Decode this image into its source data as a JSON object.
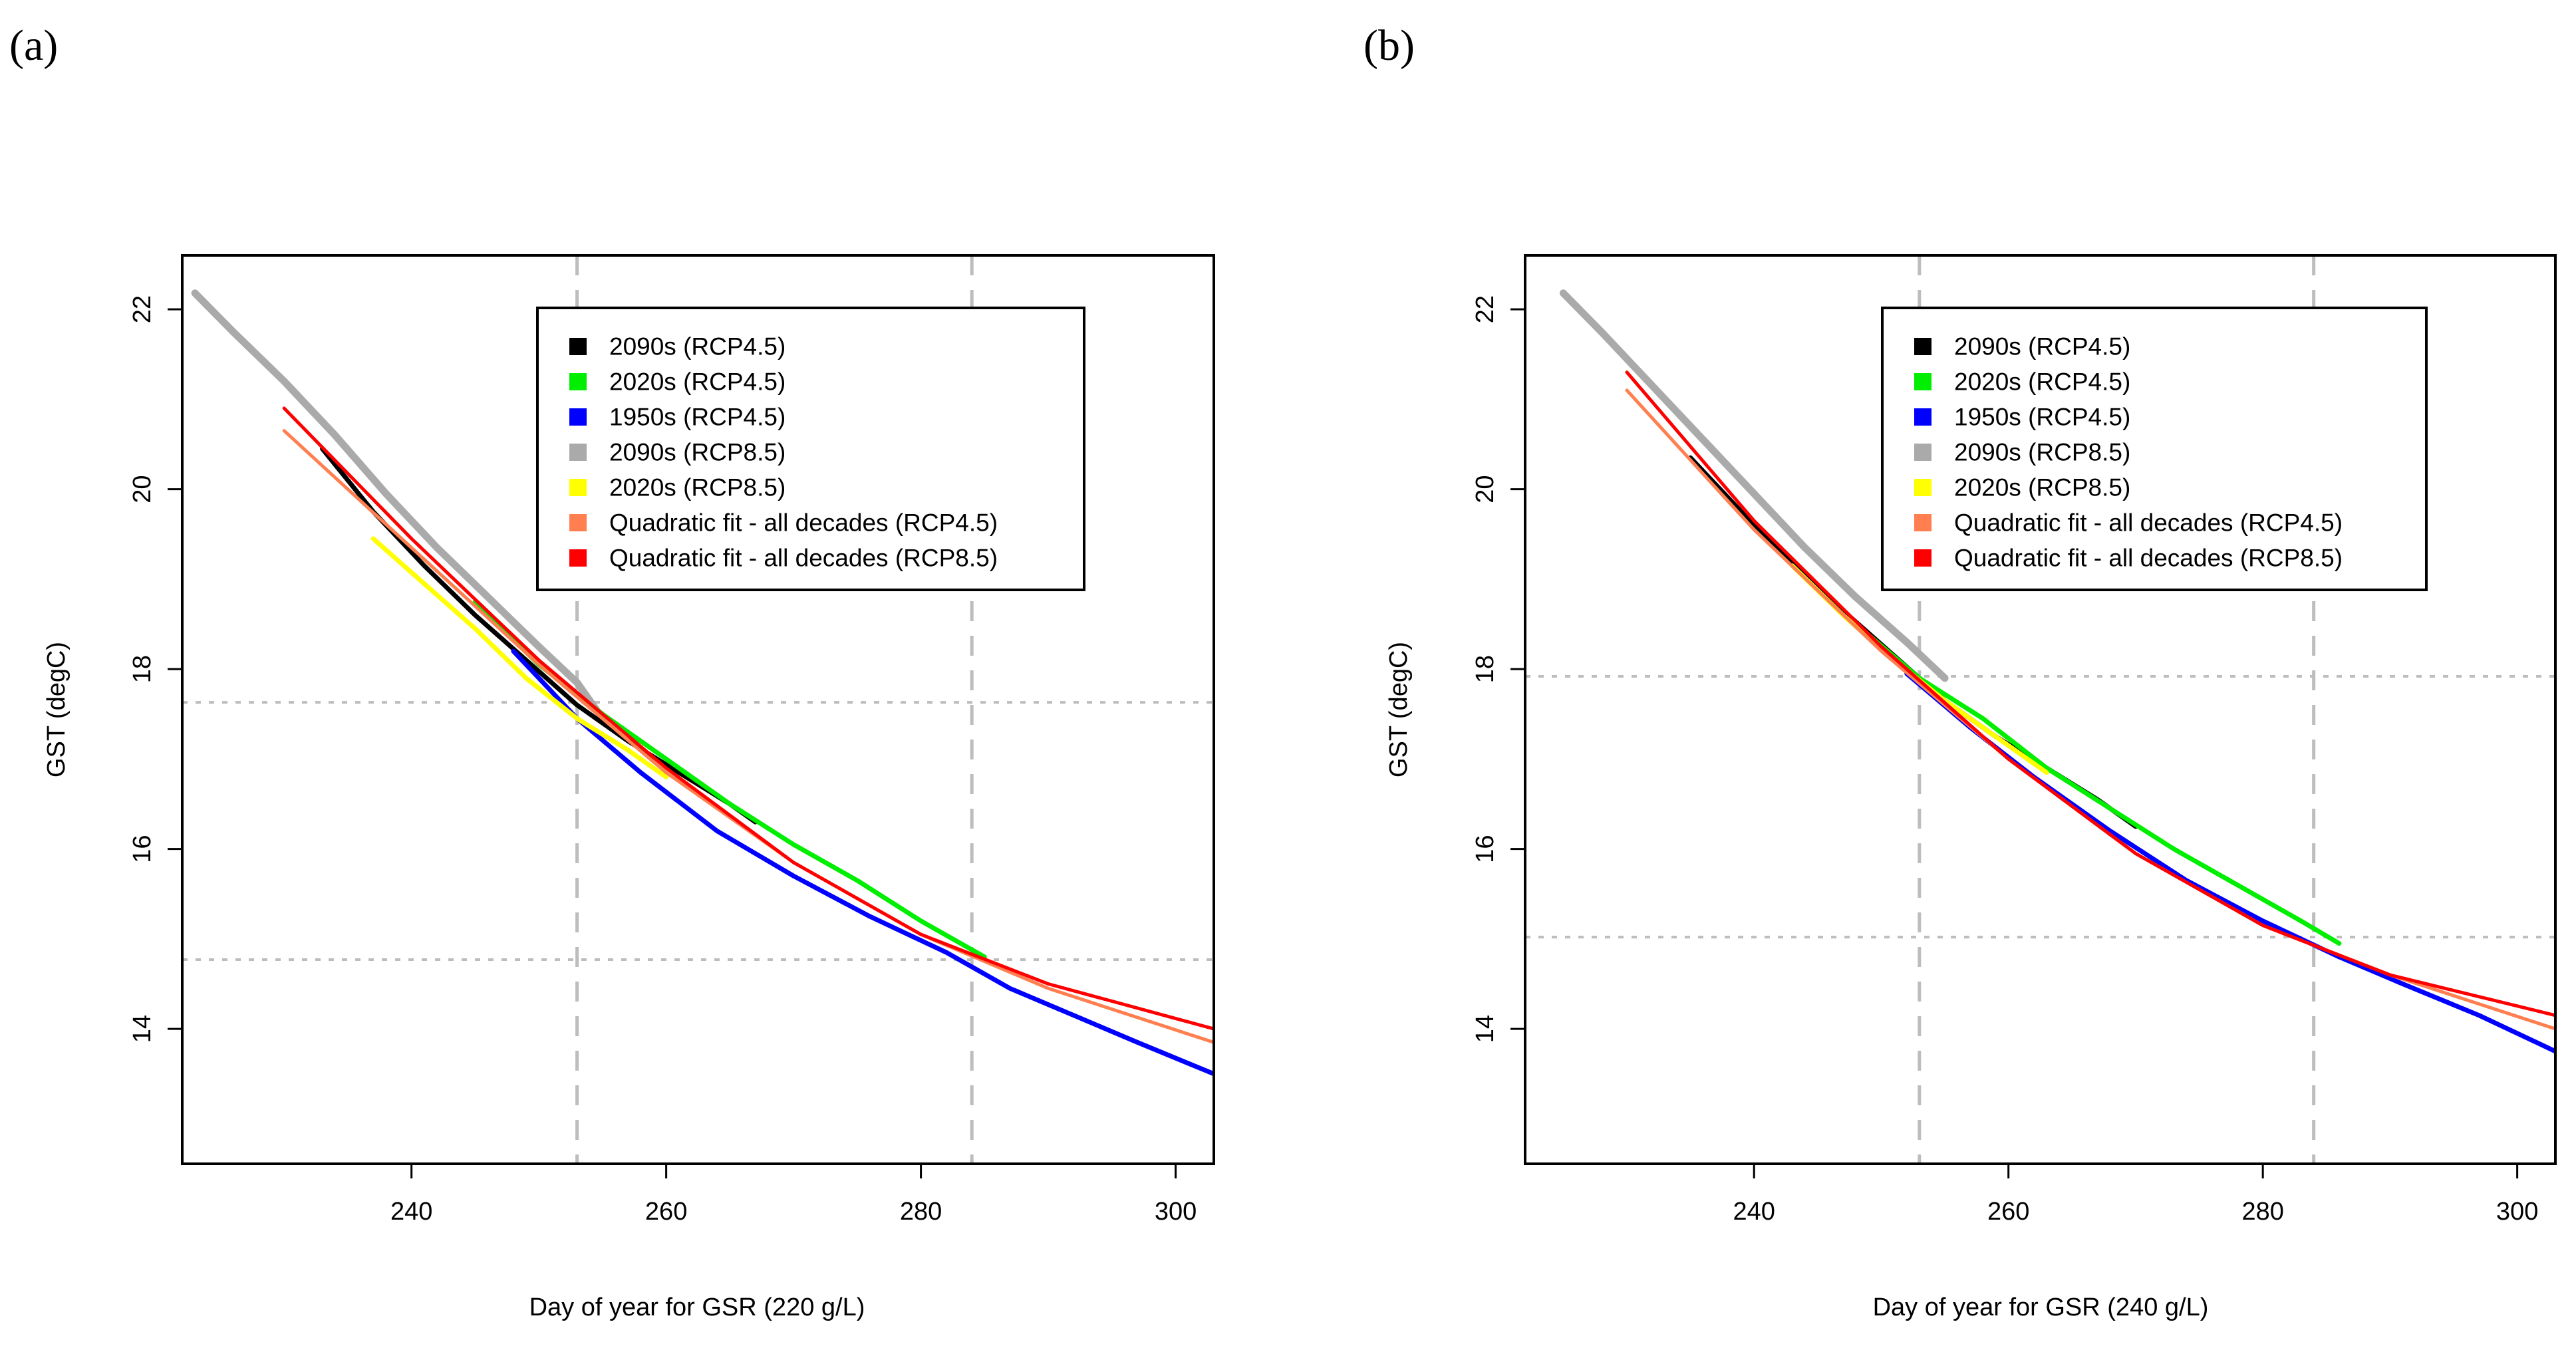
{
  "chart_data": [
    {
      "panel_label": "(a)",
      "type": "line",
      "xlabel": "Day of year for GSR (220 g/L)",
      "ylabel": "GST (degC)",
      "xlim": [
        222,
        303
      ],
      "ylim": [
        12.5,
        22.6
      ],
      "xticks": [
        240,
        260,
        280,
        300
      ],
      "yticks": [
        14,
        16,
        18,
        20,
        22
      ],
      "grid": false,
      "reference_lines": {
        "vertical": [
          253,
          284
        ],
        "horizontal": [
          17.63,
          14.77
        ]
      },
      "legend": {
        "position": "top-right",
        "entries": [
          {
            "label": "2090s (RCP4.5)",
            "color": "#000000"
          },
          {
            "label": "2020s (RCP4.5)",
            "color": "#00ee00"
          },
          {
            "label": "1950s (RCP4.5)",
            "color": "#0000ff"
          },
          {
            "label": "2090s (RCP8.5)",
            "color": "#aaaaaa"
          },
          {
            "label": "2020s (RCP8.5)",
            "color": "#ffff00"
          },
          {
            "label": "Quadratic fit - all decades (RCP4.5)",
            "color": "#ff7f50"
          },
          {
            "label": "Quadratic fit - all decades (RCP8.5)",
            "color": "#ff0000"
          }
        ]
      },
      "series": [
        {
          "name": "2090s (RCP8.5)",
          "color": "#aaaaaa",
          "width": 11,
          "x": [
            223,
            226,
            230,
            234,
            238,
            242,
            246,
            250,
            253,
            255
          ],
          "y": [
            22.18,
            21.75,
            21.2,
            20.6,
            19.95,
            19.35,
            18.8,
            18.25,
            17.85,
            17.45
          ]
        },
        {
          "name": "2090s (RCP4.5)",
          "color": "#000000",
          "width": 7,
          "x": [
            233,
            237,
            241,
            245,
            249,
            253,
            257,
            261,
            265,
            267
          ],
          "y": [
            20.45,
            19.75,
            19.15,
            18.6,
            18.1,
            17.6,
            17.2,
            16.85,
            16.5,
            16.3
          ]
        },
        {
          "name": "1950s (RCP4.5)",
          "color": "#0000ff",
          "width": 7,
          "x": [
            248,
            253,
            258,
            264,
            270,
            276,
            282,
            287,
            292,
            297,
            303
          ],
          "y": [
            18.2,
            17.45,
            16.85,
            16.2,
            15.7,
            15.25,
            14.85,
            14.45,
            14.15,
            13.85,
            13.5
          ]
        },
        {
          "name": "2020s (RCP4.5)",
          "color": "#00ee00",
          "width": 7,
          "x": [
            245,
            250,
            255,
            260,
            265,
            270,
            275,
            280,
            285
          ],
          "y": [
            18.75,
            18.05,
            17.5,
            17.0,
            16.5,
            16.05,
            15.65,
            15.2,
            14.8
          ]
        },
        {
          "name": "2020s (RCP8.5)",
          "color": "#ffff00",
          "width": 7,
          "x": [
            237,
            241,
            245,
            249,
            253,
            257,
            260
          ],
          "y": [
            19.45,
            18.95,
            18.45,
            17.9,
            17.45,
            17.1,
            16.8
          ]
        },
        {
          "name": "Quadratic fit - all decades (RCP4.5)",
          "color": "#ff7f50",
          "width": 5,
          "x": [
            230,
            240,
            250,
            260,
            270,
            280,
            290,
            303
          ],
          "y": [
            20.65,
            19.35,
            18.05,
            16.85,
            15.85,
            15.05,
            14.45,
            13.85
          ]
        },
        {
          "name": "Quadratic fit - all decades (RCP8.5)",
          "color": "#ff0000",
          "width": 5,
          "x": [
            230,
            240,
            250,
            260,
            270,
            280,
            290,
            303
          ],
          "y": [
            20.9,
            19.45,
            18.1,
            16.9,
            15.85,
            15.05,
            14.5,
            14.0
          ]
        }
      ]
    },
    {
      "panel_label": "(b)",
      "type": "line",
      "xlabel": "Day of year for GSR (240 g/L)",
      "ylabel": "GST (degC)",
      "xlim": [
        222,
        303
      ],
      "ylim": [
        12.5,
        22.6
      ],
      "xticks": [
        240,
        260,
        280,
        300
      ],
      "yticks": [
        14,
        16,
        18,
        20,
        22
      ],
      "grid": false,
      "reference_lines": {
        "vertical": [
          253,
          284
        ],
        "horizontal": [
          17.92,
          15.02
        ]
      },
      "legend": {
        "position": "top-right",
        "entries": [
          {
            "label": "2090s (RCP4.5)",
            "color": "#000000"
          },
          {
            "label": "2020s (RCP4.5)",
            "color": "#00ee00"
          },
          {
            "label": "1950s (RCP4.5)",
            "color": "#0000ff"
          },
          {
            "label": "2090s (RCP8.5)",
            "color": "#aaaaaa"
          },
          {
            "label": "2020s (RCP8.5)",
            "color": "#ffff00"
          },
          {
            "label": "Quadratic fit - all decades (RCP4.5)",
            "color": "#ff7f50"
          },
          {
            "label": "Quadratic fit - all decades (RCP8.5)",
            "color": "#ff0000"
          }
        ]
      },
      "series": [
        {
          "name": "2090s (RCP8.5)",
          "color": "#aaaaaa",
          "width": 11,
          "x": [
            225,
            228,
            232,
            236,
            240,
            244,
            248,
            252,
            255
          ],
          "y": [
            22.18,
            21.75,
            21.15,
            20.55,
            19.95,
            19.35,
            18.8,
            18.3,
            17.9
          ]
        },
        {
          "name": "2090s (RCP4.5)",
          "color": "#000000",
          "width": 7,
          "x": [
            235,
            239,
            243,
            247,
            251,
            255,
            259,
            263,
            267,
            270
          ],
          "y": [
            20.35,
            19.75,
            19.2,
            18.65,
            18.15,
            17.65,
            17.25,
            16.9,
            16.55,
            16.25
          ]
        },
        {
          "name": "1950s (RCP4.5)",
          "color": "#0000ff",
          "width": 7,
          "x": [
            252,
            257,
            262,
            268,
            274,
            280,
            286,
            291,
            297,
            303
          ],
          "y": [
            17.95,
            17.35,
            16.8,
            16.2,
            15.65,
            15.2,
            14.8,
            14.5,
            14.15,
            13.75
          ]
        },
        {
          "name": "2020s (RCP4.5)",
          "color": "#00ee00",
          "width": 7,
          "x": [
            248,
            253,
            258,
            263,
            268,
            273,
            278,
            283,
            286
          ],
          "y": [
            18.5,
            17.9,
            17.45,
            16.9,
            16.45,
            16.0,
            15.6,
            15.2,
            14.95
          ]
        },
        {
          "name": "2020s (RCP8.5)",
          "color": "#ffff00",
          "width": 7,
          "x": [
            243,
            247,
            251,
            255,
            259,
            263
          ],
          "y": [
            19.15,
            18.6,
            18.1,
            17.65,
            17.25,
            16.85
          ]
        },
        {
          "name": "Quadratic fit - all decades (RCP4.5)",
          "color": "#ff7f50",
          "width": 5,
          "x": [
            230,
            240,
            250,
            260,
            270,
            280,
            290,
            303
          ],
          "y": [
            21.1,
            19.55,
            18.2,
            17.0,
            15.95,
            15.15,
            14.6,
            14.0
          ]
        },
        {
          "name": "Quadratic fit - all decades (RCP8.5)",
          "color": "#ff0000",
          "width": 5,
          "x": [
            230,
            240,
            250,
            260,
            270,
            280,
            290,
            303
          ],
          "y": [
            21.3,
            19.65,
            18.25,
            17.0,
            15.95,
            15.15,
            14.6,
            14.15
          ]
        }
      ]
    }
  ]
}
